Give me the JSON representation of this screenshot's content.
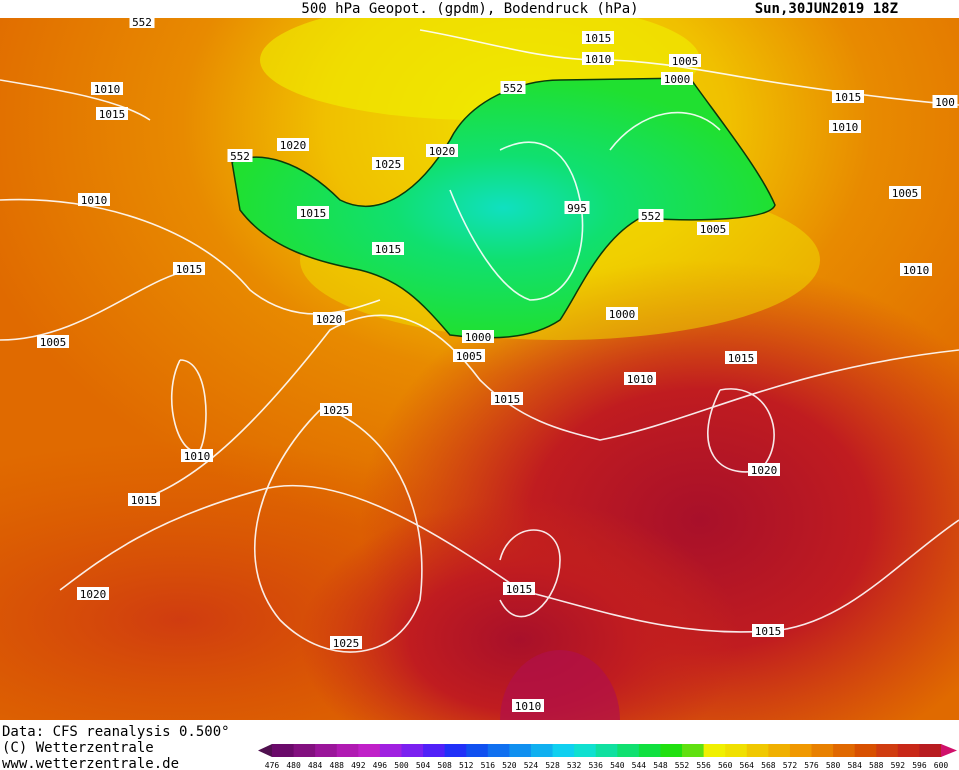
{
  "header": {
    "title": "500 hPa Geopot. (gpdm), Bodendruck (hPa)",
    "date": "Sun,30JUN2019 18Z"
  },
  "map": {
    "labels": [
      "552",
      "1015",
      "1010",
      "1005",
      "1000",
      "552",
      "1010",
      "1015",
      "1015",
      "1010",
      "100",
      "1020",
      "1020",
      "552",
      "1025",
      "1010",
      "1015",
      "995",
      "552",
      "1005",
      "1005",
      "1015",
      "1015",
      "1010",
      "1020",
      "1000",
      "1000",
      "1005",
      "1005",
      "1015",
      "1010",
      "1015",
      "1025",
      "1010",
      "1020",
      "1015",
      "1015",
      "1020",
      "1015",
      "1025",
      "1010"
    ]
  },
  "footer": {
    "source": "Data: CFS reanalysis 0.500°",
    "copyright": "(C) Wetterzentrale",
    "url": "www.wetterzentrale.de"
  },
  "scale": {
    "levels": [
      476,
      480,
      484,
      488,
      492,
      496,
      500,
      504,
      508,
      512,
      516,
      520,
      524,
      528,
      532,
      536,
      540,
      544,
      548,
      552,
      556,
      560,
      564,
      568,
      572,
      576,
      580,
      584,
      588,
      592,
      596,
      600
    ],
    "colors": [
      "#6a0a6a",
      "#82107f",
      "#9a159a",
      "#b01ab2",
      "#c020c8",
      "#a020e0",
      "#7a20f0",
      "#5020f8",
      "#2030f8",
      "#1050f0",
      "#1070f0",
      "#1090f0",
      "#10b0f0",
      "#10d0f0",
      "#10e0d0",
      "#10e0a0",
      "#10e070",
      "#10e040",
      "#20e010",
      "#60e010",
      "#f0f000",
      "#f0e000",
      "#f0c800",
      "#f0b000",
      "#f09800",
      "#e88000",
      "#e06800",
      "#d85000",
      "#d03c10",
      "#c82818",
      "#b81c20"
    ],
    "arrow_colors": [
      "#50104f",
      "#d0106a"
    ]
  }
}
